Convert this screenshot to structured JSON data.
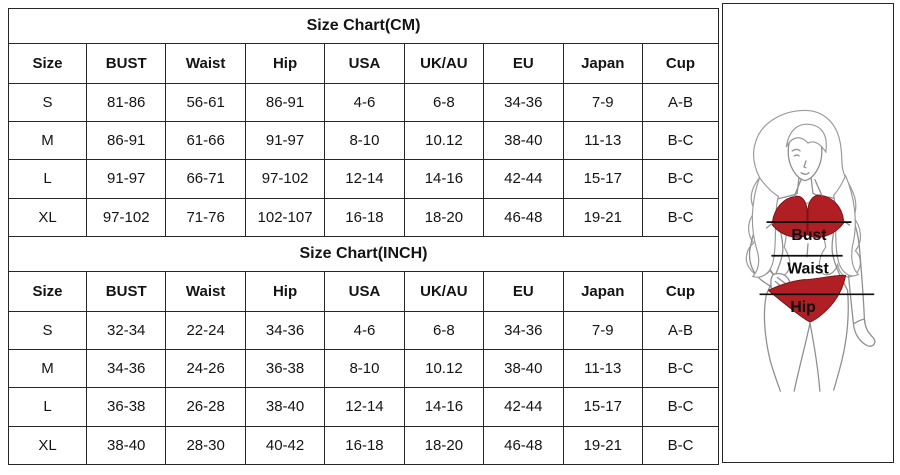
{
  "page_title": "Size Chart",
  "colors": {
    "bikini_red": "#b01f24",
    "table_border": "#262626",
    "text": "#141414",
    "figure_outline": "#8f8f8f",
    "measure_line": "#0d0d0d"
  },
  "chart_data": [
    {
      "type": "table",
      "title": "Size Chart(CM)",
      "columns": [
        "Size",
        "BUST",
        "Waist",
        "Hip",
        "USA",
        "UK/AU",
        "EU",
        "Japan",
        "Cup"
      ],
      "rows": [
        [
          "S",
          "81-86",
          "56-61",
          "86-91",
          "4-6",
          "6-8",
          "34-36",
          "7-9",
          "A-B"
        ],
        [
          "M",
          "86-91",
          "61-66",
          "91-97",
          "8-10",
          "10.12",
          "38-40",
          "11-13",
          "B-C"
        ],
        [
          "L",
          "91-97",
          "66-71",
          "97-102",
          "12-14",
          "14-16",
          "42-44",
          "15-17",
          "B-C"
        ],
        [
          "XL",
          "97-102",
          "71-76",
          "102-107",
          "16-18",
          "18-20",
          "46-48",
          "19-21",
          "B-C"
        ]
      ]
    },
    {
      "type": "table",
      "title": "Size Chart(INCH)",
      "columns": [
        "Size",
        "BUST",
        "Waist",
        "Hip",
        "USA",
        "UK/AU",
        "EU",
        "Japan",
        "Cup"
      ],
      "rows": [
        [
          "S",
          "32-34",
          "22-24",
          "34-36",
          "4-6",
          "6-8",
          "34-36",
          "7-9",
          "A-B"
        ],
        [
          "M",
          "34-36",
          "24-26",
          "36-38",
          "8-10",
          "10.12",
          "38-40",
          "11-13",
          "B-C"
        ],
        [
          "L",
          "36-38",
          "26-28",
          "38-40",
          "12-14",
          "14-16",
          "42-44",
          "15-17",
          "B-C"
        ],
        [
          "XL",
          "38-40",
          "28-30",
          "40-42",
          "16-18",
          "18-20",
          "46-48",
          "19-21",
          "B-C"
        ]
      ]
    }
  ],
  "figure": {
    "labels": {
      "bust": "Bust",
      "waist": "Waist",
      "hip": "Hip"
    }
  }
}
